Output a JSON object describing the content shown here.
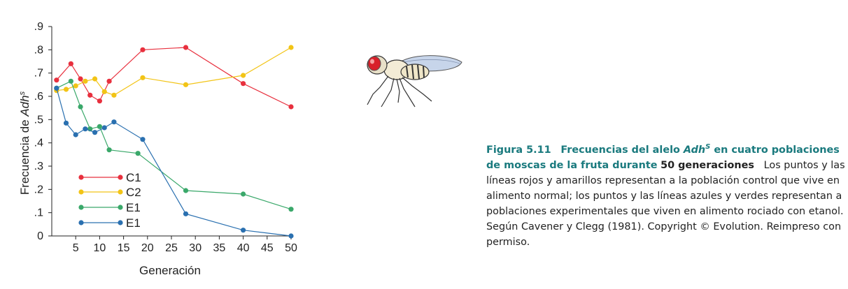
{
  "chart_data": {
    "type": "line",
    "xlabel": "Generación",
    "ylabel": "Frecuencia de ",
    "ylabel_italic": "Adh",
    "ylabel_sup": "s",
    "xlim": [
      0,
      50
    ],
    "ylim": [
      0,
      0.9
    ],
    "x_ticks": [
      5,
      10,
      15,
      20,
      25,
      30,
      35,
      40,
      45,
      50
    ],
    "x_tick_labels": [
      "5",
      "10",
      "15",
      "20",
      "25",
      "30",
      "35",
      "40",
      "45",
      "50"
    ],
    "y_ticks": [
      0,
      0.1,
      0.2,
      0.3,
      0.4,
      0.5,
      0.6,
      0.7,
      0.8,
      0.9
    ],
    "y_tick_labels": [
      "0",
      ".1",
      ".2",
      ".3",
      ".4",
      ".5",
      ".6",
      ".7",
      ".8",
      ".9"
    ],
    "grid": false,
    "legend_position": "bottom-left",
    "series": [
      {
        "name": "C1",
        "color": "#e8303e",
        "x": [
          1,
          4,
          6,
          8,
          10,
          12,
          19,
          28,
          40,
          50
        ],
        "y": [
          0.67,
          0.74,
          0.675,
          0.605,
          0.58,
          0.665,
          0.8,
          0.81,
          0.655,
          0.555
        ]
      },
      {
        "name": "C2",
        "color": "#f2c416",
        "x": [
          1,
          3,
          5,
          7,
          9,
          11,
          13,
          19,
          28,
          40,
          50
        ],
        "y": [
          0.625,
          0.63,
          0.645,
          0.665,
          0.675,
          0.62,
          0.605,
          0.68,
          0.65,
          0.69,
          0.81
        ]
      },
      {
        "name": "E1",
        "color": "#3aa86a",
        "x": [
          1,
          4,
          6,
          8,
          10,
          12,
          18,
          28,
          40,
          50
        ],
        "y": [
          0.635,
          0.665,
          0.555,
          0.46,
          0.47,
          0.37,
          0.355,
          0.195,
          0.18,
          0.115
        ]
      },
      {
        "name": "E1",
        "color": "#2a70b0",
        "x": [
          1,
          3,
          5,
          7,
          9,
          11,
          13,
          19,
          28,
          40,
          50
        ],
        "y": [
          0.635,
          0.485,
          0.435,
          0.46,
          0.445,
          0.465,
          0.49,
          0.415,
          0.095,
          0.025,
          0.0
        ]
      }
    ]
  },
  "caption": {
    "label": "Figura 5.11",
    "title_pre": "Frecuencias del alelo ",
    "title_italic": "Adh",
    "title_sup": "S",
    "title_post": " en cuatro poblaciones de moscas de la fruta durante",
    "title_end": "50 generaciones",
    "body": "Los puntos y las líneas rojos y amarillos representan a la población control que vive en alimento normal; los puntos y las líneas azules y verdes representan a poblaciones experimentales que viven en alimento rociado con etanol. Según Cavener y Clegg (1981). Copyright © Evolution. Reimpreso con permiso."
  }
}
